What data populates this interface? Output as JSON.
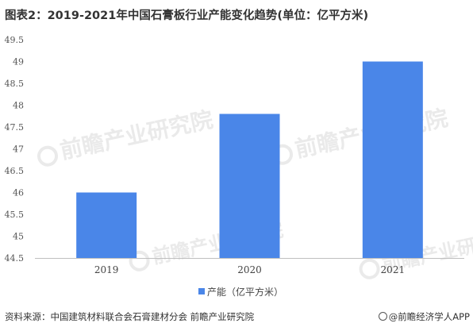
{
  "title": "图表2：2019-2021年中国石膏板行业产能变化趋势(单位：亿平方米)",
  "source": "资料来源：中国建筑材料联合会石膏建材分会 前瞻产业研究院",
  "brand": "@前瞻经济学人APP",
  "watermark": "前瞻产业研究院",
  "chart_data": {
    "type": "bar",
    "categories": [
      "2019",
      "2020",
      "2021"
    ],
    "series": [
      {
        "name": "产能（亿平方米）",
        "values": [
          46.0,
          47.8,
          49.0
        ],
        "color": "#4a86e8"
      }
    ],
    "ylim": [
      44.5,
      49.5
    ],
    "yticks": [
      "44.5",
      "45",
      "45.5",
      "46",
      "46.5",
      "47",
      "47.5",
      "48",
      "48.5",
      "49",
      "49.5"
    ],
    "grid": false,
    "legend": "bottom"
  }
}
